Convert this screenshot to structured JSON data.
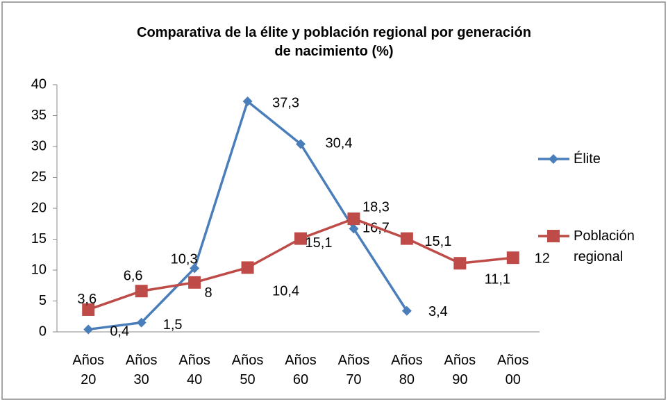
{
  "chart_data": {
    "type": "line",
    "title": "Comparativa de la élite y población regional por generación de nacimiento (%)",
    "categories": [
      "Años 20",
      "Años 30",
      "Años 40",
      "Años 50",
      "Años 60",
      "Años 70",
      "Años 80",
      "Años 90",
      "Años 00"
    ],
    "series": [
      {
        "name": "Élite",
        "color": "#4a7ebb",
        "marker": "diamond",
        "values": [
          0.4,
          1.5,
          10.3,
          37.3,
          30.4,
          16.7,
          3.4,
          null,
          null
        ],
        "value_labels": [
          "0,4",
          "1,5",
          "10,3",
          "37,3",
          "30,4",
          "16,7",
          "3,4",
          null,
          null
        ]
      },
      {
        "name": "Población regional",
        "color": "#be4b48",
        "marker": "square",
        "values": [
          3.6,
          6.6,
          8,
          10.4,
          15.1,
          18.3,
          15.1,
          11.1,
          12
        ],
        "value_labels": [
          "3,6",
          "6,6",
          "8",
          "10,4",
          "15,1",
          "18,3",
          "15,1",
          "11,1",
          "12"
        ]
      }
    ],
    "ylim": [
      0,
      40
    ],
    "yticks": [
      0,
      5,
      10,
      15,
      20,
      25,
      30,
      35,
      40
    ],
    "grid": false,
    "legend": "right"
  }
}
